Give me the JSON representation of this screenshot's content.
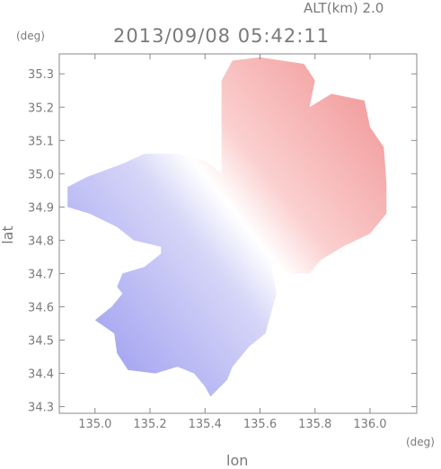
{
  "header": {
    "alt_label": "ALT(km) 2.0",
    "timestamp": "2013/09/08 05:42:11"
  },
  "chart_data": {
    "type": "heatmap",
    "title": "2013/09/08 05:42:11",
    "subtitle": "ALT(km) 2.0",
    "xlabel": "lon",
    "ylabel": "lat",
    "x_unit": "(deg)",
    "y_unit": "(deg)",
    "xlim": [
      134.87,
      136.17
    ],
    "ylim": [
      34.28,
      35.36
    ],
    "x_ticks": [
      "135.0",
      "135.2",
      "135.4",
      "135.6",
      "135.8",
      "136.0"
    ],
    "y_ticks": [
      "34.3",
      "34.4",
      "34.5",
      "34.6",
      "34.7",
      "34.8",
      "34.9",
      "35.0",
      "35.1",
      "35.2",
      "35.3"
    ],
    "grid": false,
    "legend": "none",
    "colormap": {
      "negative": "#b8b8f4",
      "zero": "#ffffff",
      "positive": "#f6a8a8"
    },
    "regions": [
      {
        "name": "positive-northeast",
        "sign": "positive",
        "polygon": [
          [
            135.5,
            35.34
          ],
          [
            135.6,
            35.35
          ],
          [
            135.76,
            35.33
          ],
          [
            135.8,
            35.28
          ],
          [
            135.78,
            35.2
          ],
          [
            135.86,
            35.24
          ],
          [
            135.98,
            35.22
          ],
          [
            136.0,
            35.14
          ],
          [
            136.05,
            35.08
          ],
          [
            136.06,
            34.97
          ],
          [
            136.06,
            34.88
          ],
          [
            136.0,
            34.82
          ],
          [
            135.9,
            34.78
          ],
          [
            135.82,
            34.74
          ],
          [
            135.78,
            34.7
          ],
          [
            135.71,
            34.7
          ],
          [
            135.64,
            34.73
          ],
          [
            135.58,
            34.78
          ],
          [
            135.51,
            34.85
          ],
          [
            135.47,
            34.92
          ],
          [
            135.46,
            35.0
          ],
          [
            135.46,
            35.1
          ],
          [
            135.46,
            35.2
          ],
          [
            135.46,
            35.28
          ]
        ]
      },
      {
        "name": "negative-west",
        "sign": "negative",
        "polygon": [
          [
            134.9,
            34.96
          ],
          [
            134.97,
            34.99
          ],
          [
            135.1,
            35.03
          ],
          [
            135.18,
            35.06
          ],
          [
            135.3,
            35.06
          ],
          [
            135.4,
            35.04
          ],
          [
            135.46,
            35.0
          ],
          [
            135.47,
            34.92
          ],
          [
            135.51,
            34.85
          ],
          [
            135.58,
            34.78
          ],
          [
            135.64,
            34.73
          ],
          [
            135.66,
            34.64
          ],
          [
            135.64,
            34.58
          ],
          [
            135.62,
            34.52
          ],
          [
            135.56,
            34.48
          ],
          [
            135.5,
            34.42
          ],
          [
            135.48,
            34.38
          ],
          [
            135.42,
            34.33
          ],
          [
            135.4,
            34.36
          ],
          [
            135.36,
            34.4
          ],
          [
            135.3,
            34.42
          ],
          [
            135.22,
            34.4
          ],
          [
            135.12,
            34.41
          ],
          [
            135.08,
            34.46
          ],
          [
            135.07,
            34.52
          ],
          [
            135.0,
            34.56
          ],
          [
            135.06,
            34.6
          ],
          [
            135.1,
            34.64
          ],
          [
            135.08,
            34.66
          ],
          [
            135.1,
            34.7
          ],
          [
            135.18,
            34.72
          ],
          [
            135.24,
            34.76
          ],
          [
            135.24,
            34.78
          ],
          [
            135.14,
            34.8
          ],
          [
            135.08,
            34.84
          ],
          [
            134.98,
            34.88
          ],
          [
            134.9,
            34.9
          ]
        ]
      }
    ]
  }
}
